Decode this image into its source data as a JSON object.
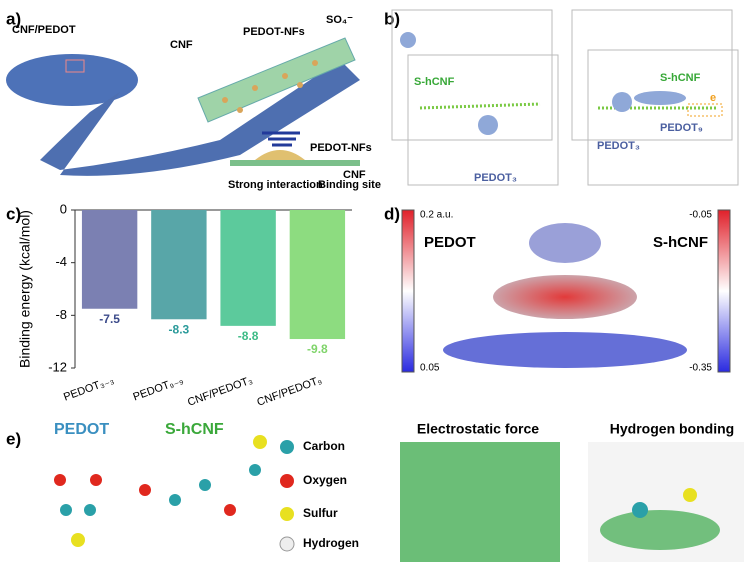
{
  "panel_labels": [
    "a)",
    "b)",
    "c)",
    "d)",
    "e)"
  ],
  "panel_a": {
    "labels": [
      "CNF/PEDOT",
      "CNF",
      "PEDOT-NFs",
      "SO₄⁻"
    ],
    "inset": [
      "PEDOT-NFs",
      "CNF",
      "Strong interaction",
      "Binding site"
    ]
  },
  "panel_b": {
    "left": [
      "S-hCNF",
      "PEDOT₃"
    ],
    "right": [
      "S-hCNF",
      "PEDOT₃",
      "PEDOT₉",
      "e"
    ]
  },
  "chart_data": {
    "type": "bar",
    "y_label": "Binding energy (kcal/mol)",
    "categories": [
      "PEDOT₃₋₃",
      "PEDOT₉₋₉",
      "CNF/PEDOT₃",
      "CNF/PEDOT₉"
    ],
    "values": [
      -7.5,
      -8.3,
      -8.8,
      -9.8
    ],
    "colors": [
      "#7b80b2",
      "#58a6a8",
      "#5cca9c",
      "#8ddc80"
    ],
    "label_colors": [
      "#3b4a8a",
      "#2a9a9a",
      "#3dbb86",
      "#7fd46a"
    ],
    "ylim": [
      -12,
      0
    ],
    "yticks": [
      0,
      -4,
      -8,
      -12
    ]
  },
  "panel_d": {
    "left_title": "PEDOT",
    "left_max": "0.2 a.u.",
    "left_min": "0.05",
    "right_title": "S-hCNF",
    "right_max": "-0.05",
    "right_min": "-0.35"
  },
  "panel_e": {
    "molecules": [
      "PEDOT",
      "S-hCNF"
    ],
    "legend": [
      "Carbon",
      "Oxygen",
      "Sulfur",
      "Hydrogen"
    ],
    "titles": [
      "Electrostatic force",
      "Hydrogen bonding"
    ]
  }
}
